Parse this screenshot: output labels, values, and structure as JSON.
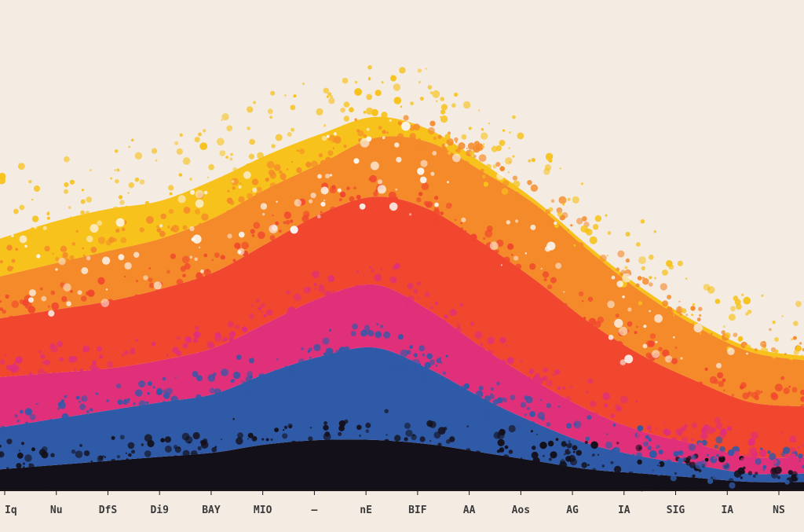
{
  "chart_data": {
    "type": "area",
    "stacked": true,
    "title": "",
    "xlabel": "",
    "ylabel": "",
    "grid": false,
    "legend": "none",
    "categories": [
      "Iq",
      "Nu",
      "DfS",
      "Di9",
      "BAY",
      "MIO",
      "—",
      "nE",
      "BIF",
      "AA",
      "Aos",
      "AG",
      "IA",
      "SIG",
      "IA",
      "NS"
    ],
    "ylim": [
      0,
      100
    ],
    "series": [
      {
        "color": "#14101a",
        "values": [
          5,
          6,
          7,
          8,
          9,
          11,
          12,
          12,
          11,
          9,
          7,
          5,
          4,
          3,
          2,
          2
        ]
      },
      {
        "color": "#2f5aa8",
        "values": [
          10,
          11,
          12,
          13,
          14,
          17,
          20,
          22,
          18,
          13,
          9,
          6,
          4,
          3,
          2,
          2
        ]
      },
      {
        "color": "#e0307a",
        "values": [
          12,
          11,
          10,
          10,
          11,
          12,
          14,
          15,
          14,
          12,
          10,
          8,
          6,
          5,
          4,
          4
        ]
      },
      {
        "color": "#f0472e",
        "values": [
          14,
          15,
          16,
          17,
          18,
          19,
          20,
          21,
          24,
          25,
          24,
          21,
          18,
          15,
          13,
          12
        ]
      },
      {
        "color": "#f58a2a",
        "values": [
          10,
          11,
          12,
          12,
          13,
          13,
          12,
          14,
          16,
          17,
          18,
          17,
          15,
          13,
          12,
          11
        ]
      },
      {
        "color": "#f7c21b",
        "values": [
          9,
          10,
          10,
          9,
          9,
          8,
          7,
          5,
          3,
          2,
          1,
          1,
          1,
          1,
          1,
          1
        ]
      }
    ]
  }
}
